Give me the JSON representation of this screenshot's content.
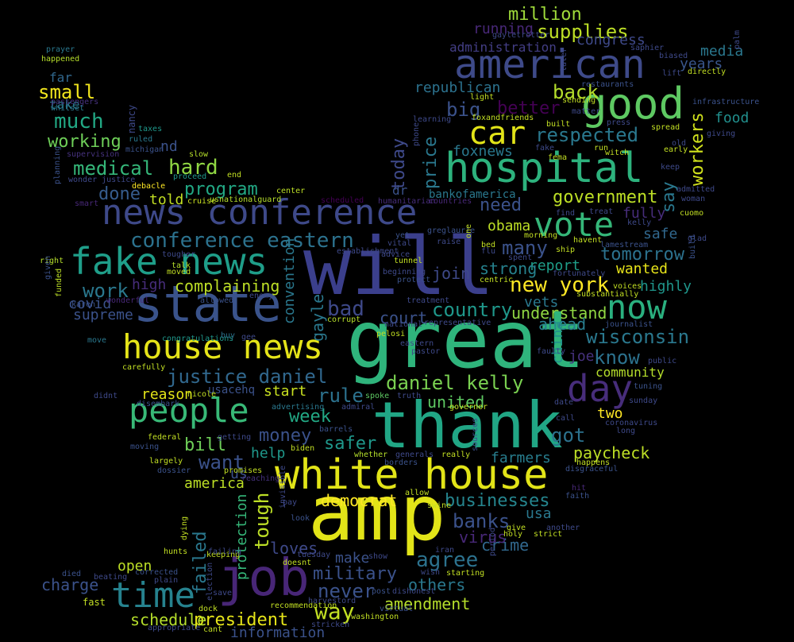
{
  "image": {
    "kind": "word-cloud",
    "background": "#000000"
  },
  "words": [
    {
      "text": "will",
      "color": "#3b3f8c"
    },
    {
      "text": "great",
      "color": "#2fb47c"
    },
    {
      "text": "amp",
      "color": "#e2e418"
    },
    {
      "text": "thank",
      "color": "#21a685"
    },
    {
      "text": "state",
      "color": "#3a538b"
    },
    {
      "text": "white house",
      "color": "#e2e418"
    },
    {
      "text": "job",
      "color": "#482677"
    },
    {
      "text": "hospital",
      "color": "#2db27d"
    },
    {
      "text": "american",
      "color": "#3e4a89"
    },
    {
      "text": "news conference",
      "color": "#3e4989"
    },
    {
      "text": "fake news",
      "color": "#1f9e89"
    },
    {
      "text": "house news",
      "color": "#e5e419"
    },
    {
      "text": "good",
      "color": "#5ec962"
    },
    {
      "text": "people",
      "color": "#38b977"
    },
    {
      "text": "vote",
      "color": "#35b779"
    },
    {
      "text": "now",
      "color": "#2ab07f"
    },
    {
      "text": "time",
      "color": "#26828e"
    },
    {
      "text": "car",
      "color": "#e2e418"
    },
    {
      "text": "day",
      "color": "#472d7b"
    },
    {
      "text": "conference eastern",
      "color": "#2c728e"
    },
    {
      "text": "justice daniel",
      "color": "#31688e"
    },
    {
      "text": "daniel kelly",
      "color": "#7ad151"
    },
    {
      "text": "new york",
      "color": "#fde725"
    },
    {
      "text": "country",
      "color": "#1f988b"
    },
    {
      "text": "wisconsin",
      "color": "#2a788e"
    },
    {
      "text": "businesses",
      "color": "#25858e"
    },
    {
      "text": "president",
      "color": "#e5e419"
    },
    {
      "text": "military",
      "color": "#3b528b"
    },
    {
      "text": "medical",
      "color": "#35b779"
    },
    {
      "text": "much",
      "color": "#22a884"
    },
    {
      "text": "working",
      "color": "#6ece58"
    },
    {
      "text": "work",
      "color": "#2a788e"
    },
    {
      "text": "hard",
      "color": "#90d743"
    },
    {
      "text": "program",
      "color": "#22a884"
    },
    {
      "text": "done",
      "color": "#365c8d"
    },
    {
      "text": "government",
      "color": "#bddf26"
    },
    {
      "text": "respected",
      "color": "#2a788e"
    },
    {
      "text": "big",
      "color": "#3b528b"
    },
    {
      "text": "better",
      "color": "#440154"
    },
    {
      "text": "back",
      "color": "#b5de2b"
    },
    {
      "text": "supplies",
      "color": "#bddf26"
    },
    {
      "text": "million",
      "color": "#9fda3a"
    },
    {
      "text": "running",
      "color": "#482878"
    },
    {
      "text": "congress",
      "color": "#3e4989"
    },
    {
      "text": "administration",
      "color": "#433e85"
    },
    {
      "text": "media",
      "color": "#2a788e"
    },
    {
      "text": "republican",
      "color": "#2c728e"
    },
    {
      "text": "small",
      "color": "#f1e51d"
    },
    {
      "text": "far",
      "color": "#31688e"
    },
    {
      "text": "take",
      "color": "#2a788e"
    },
    {
      "text": "workers",
      "color": "#d0e11c"
    },
    {
      "text": "food",
      "color": "#218f8d"
    },
    {
      "text": "years",
      "color": "#39568c"
    },
    {
      "text": "need",
      "color": "#3b528b"
    },
    {
      "text": "obama",
      "color": "#bddf26"
    },
    {
      "text": "many",
      "color": "#3b528b"
    },
    {
      "text": "tomorrow",
      "color": "#2c728e"
    },
    {
      "text": "safe",
      "color": "#31688e"
    },
    {
      "text": "fully",
      "color": "#472d7b"
    },
    {
      "text": "say",
      "color": "#2a788e"
    },
    {
      "text": "report",
      "color": "#1f9e89"
    },
    {
      "text": "strong",
      "color": "#26828e"
    },
    {
      "text": "wanted",
      "color": "#e7e419"
    },
    {
      "text": "highly",
      "color": "#1f968b"
    },
    {
      "text": "join",
      "color": "#3e4989"
    },
    {
      "text": "bad",
      "color": "#3e4989"
    },
    {
      "text": "complaining",
      "color": "#bddf26"
    },
    {
      "text": "high",
      "color": "#472d7b"
    },
    {
      "text": "covid",
      "color": "#3b528b"
    },
    {
      "text": "supreme",
      "color": "#3b528b"
    },
    {
      "text": "told",
      "color": "#c2df23"
    },
    {
      "text": "vets",
      "color": "#2a788e"
    },
    {
      "text": "understand",
      "color": "#90d743"
    },
    {
      "text": "ahead",
      "color": "#287d8e"
    },
    {
      "text": "know",
      "color": "#2c728e"
    },
    {
      "text": "joe",
      "color": "#46327e"
    },
    {
      "text": "community",
      "color": "#b5de2b"
    },
    {
      "text": "court",
      "color": "#3b528b"
    },
    {
      "text": "rule",
      "color": "#2c728e"
    },
    {
      "text": "united",
      "color": "#5ec962"
    },
    {
      "text": "week",
      "color": "#22a884"
    },
    {
      "text": "start",
      "color": "#c8e020"
    },
    {
      "text": "reason",
      "color": "#e2e418"
    },
    {
      "text": "money",
      "color": "#3b528b"
    },
    {
      "text": "bill",
      "color": "#6ece58"
    },
    {
      "text": "safer",
      "color": "#1f988b"
    },
    {
      "text": "help",
      "color": "#1f988b"
    },
    {
      "text": "want",
      "color": "#3b528b"
    },
    {
      "text": "got",
      "color": "#2c728e"
    },
    {
      "text": "two",
      "color": "#fde725"
    },
    {
      "text": "paycheck",
      "color": "#bddf26"
    },
    {
      "text": "farmers",
      "color": "#287d8e"
    },
    {
      "text": "banks",
      "color": "#3b528b"
    },
    {
      "text": "usa",
      "color": "#2a788e"
    },
    {
      "text": "crime",
      "color": "#31688e"
    },
    {
      "text": "virus",
      "color": "#482878"
    },
    {
      "text": "agree",
      "color": "#2c728e"
    },
    {
      "text": "make",
      "color": "#3b528b"
    },
    {
      "text": "never",
      "color": "#3b528b"
    },
    {
      "text": "others",
      "color": "#2a788e"
    },
    {
      "text": "amendment",
      "color": "#b5de2b"
    },
    {
      "text": "way",
      "color": "#c2df23"
    },
    {
      "text": "democrat",
      "color": "#fde725"
    },
    {
      "text": "loves",
      "color": "#3e4989"
    },
    {
      "text": "tough",
      "color": "#bddf26"
    },
    {
      "text": "protection",
      "color": "#35b779"
    },
    {
      "text": "failed",
      "color": "#2a788e"
    },
    {
      "text": "open",
      "color": "#bddf26"
    },
    {
      "text": "charge",
      "color": "#3b528b"
    },
    {
      "text": "schedule",
      "color": "#b5de2b"
    },
    {
      "text": "information",
      "color": "#3b528b"
    },
    {
      "text": "america",
      "color": "#bddf26"
    },
    {
      "text": "today",
      "color": "#3e4989"
    },
    {
      "text": "price",
      "color": "#2a788e"
    },
    {
      "text": "dr",
      "color": "#3b528b"
    },
    {
      "text": "foxnews",
      "color": "#2a788e"
    },
    {
      "text": "bankofamerica",
      "color": "#2a788e"
    },
    {
      "text": "gayle",
      "color": "#2a788e"
    },
    {
      "text": "convention",
      "color": "#2a788e"
    },
    {
      "text": "china",
      "color": "#21918c"
    },
    {
      "text": "us",
      "color": "#3b528b"
    },
    {
      "text": "nd",
      "color": "#3b528b"
    },
    {
      "text": "usacehq",
      "color": "#3b528b"
    },
    {
      "text": "nancy",
      "color": "#3e4989"
    },
    {
      "text": "prayer",
      "color": "#2a788e"
    },
    {
      "text": "happened",
      "color": "#b5de2b"
    },
    {
      "text": "passengers",
      "color": "#46327e"
    },
    {
      "text": "whitset",
      "color": "#2a788e"
    },
    {
      "text": "taxes",
      "color": "#1f988b"
    },
    {
      "text": "ruled",
      "color": "#2a788e"
    },
    {
      "text": "michigan",
      "color": "#3b528b"
    },
    {
      "text": "supervision",
      "color": "#46327e"
    },
    {
      "text": "planning",
      "color": "#3b528b"
    },
    {
      "text": "wonder justice",
      "color": "#3e4989"
    },
    {
      "text": "slow",
      "color": "#b5de2b"
    },
    {
      "text": "end",
      "color": "#c2df23"
    },
    {
      "text": "proceed",
      "color": "#1f988b"
    },
    {
      "text": "debacle",
      "color": "#fde725"
    },
    {
      "text": "smart",
      "color": "#482878"
    },
    {
      "text": "cruise",
      "color": "#c8e020"
    },
    {
      "text": "usnationalguard",
      "color": "#b5de2b"
    },
    {
      "text": "center",
      "color": "#bddf26"
    },
    {
      "text": "scheduled",
      "color": "#440154"
    },
    {
      "text": "humanitarian",
      "color": "#472d7b"
    },
    {
      "text": "countries",
      "color": "#482878"
    },
    {
      "text": "right",
      "color": "#b5de2b"
    },
    {
      "text": "given",
      "color": "#3b528b"
    },
    {
      "text": "funded",
      "color": "#bddf26"
    },
    {
      "text": "talk",
      "color": "#b5de2b"
    },
    {
      "text": "moved",
      "color": "#c2df23"
    },
    {
      "text": "tougher",
      "color": "#3e4989"
    },
    {
      "text": "wonderful",
      "color": "#482878"
    },
    {
      "text": "allowed",
      "color": "#3b528b"
    },
    {
      "text": "enemy",
      "color": "#3e4989"
    },
    {
      "text": "karen",
      "color": "#3b528b"
    },
    {
      "text": "move",
      "color": "#2a788e"
    },
    {
      "text": "congratulations",
      "color": "#1f988b"
    },
    {
      "text": "buy",
      "color": "#2c728e"
    },
    {
      "text": "gee",
      "color": "#3e4989"
    },
    {
      "text": "corrupt",
      "color": "#b5de2b"
    },
    {
      "text": "national",
      "color": "#3e4989"
    },
    {
      "text": "carefully",
      "color": "#c2df23"
    },
    {
      "text": "nicole",
      "color": "#c2df23"
    },
    {
      "text": "didnt",
      "color": "#3e4989"
    },
    {
      "text": "disembark",
      "color": "#3b528b"
    },
    {
      "text": "advertising",
      "color": "#2a788e"
    },
    {
      "text": "admiral",
      "color": "#3e4989"
    },
    {
      "text": "spoke",
      "color": "#5ec962"
    },
    {
      "text": "truth",
      "color": "#3e4989"
    },
    {
      "text": "governor",
      "color": "#c2df23"
    },
    {
      "text": "barrels",
      "color": "#3b528b"
    },
    {
      "text": "federal",
      "color": "#c2df23"
    },
    {
      "text": "getting",
      "color": "#3e4989"
    },
    {
      "text": "moving",
      "color": "#3b528b"
    },
    {
      "text": "biden",
      "color": "#c2df23"
    },
    {
      "text": "largely",
      "color": "#c2df23"
    },
    {
      "text": "dossier",
      "color": "#3b528b"
    },
    {
      "text": "promises",
      "color": "#c2df23"
    },
    {
      "text": "reaching",
      "color": "#46327e"
    },
    {
      "text": "whether",
      "color": "#b5de2b"
    },
    {
      "text": "generals",
      "color": "#3e4989"
    },
    {
      "text": "borders",
      "color": "#3b528b"
    },
    {
      "text": "really",
      "color": "#c2df23"
    },
    {
      "text": "sources",
      "color": "#3b528b"
    },
    {
      "text": "happens",
      "color": "#c2df23"
    },
    {
      "text": "disgraceful",
      "color": "#3b528b"
    },
    {
      "text": "hit",
      "color": "#482878"
    },
    {
      "text": "faith",
      "color": "#3b528b"
    },
    {
      "text": "another",
      "color": "#3e4989"
    },
    {
      "text": "strict",
      "color": "#c2df23"
    },
    {
      "text": "give",
      "color": "#c2df23"
    },
    {
      "text": "holy",
      "color": "#c2df23"
    },
    {
      "text": "iran",
      "color": "#3e4989"
    },
    {
      "text": "swine",
      "color": "#c2df23"
    },
    {
      "text": "allow",
      "color": "#c2df23"
    },
    {
      "text": "pay",
      "color": "#3e4989"
    },
    {
      "text": "invisible",
      "color": "#3e4989"
    },
    {
      "text": "look",
      "color": "#3b528b"
    },
    {
      "text": "doesnt",
      "color": "#c2df23"
    },
    {
      "text": "show",
      "color": "#3e4989"
    },
    {
      "text": "tuesday",
      "color": "#3e4989"
    },
    {
      "text": "wish",
      "color": "#3e4989"
    },
    {
      "text": "starting",
      "color": "#c2df23"
    },
    {
      "text": "period",
      "color": "#3e4989"
    },
    {
      "text": "post",
      "color": "#3b528b"
    },
    {
      "text": "dishonest",
      "color": "#3e4989"
    },
    {
      "text": "keeping",
      "color": "#c2df23"
    },
    {
      "text": "failing",
      "color": "#3e4989"
    },
    {
      "text": "hunts",
      "color": "#c2df23"
    },
    {
      "text": "dying",
      "color": "#c2df23"
    },
    {
      "text": "died",
      "color": "#3b528b"
    },
    {
      "text": "beating",
      "color": "#3e4989"
    },
    {
      "text": "corrected",
      "color": "#3b528b"
    },
    {
      "text": "plain",
      "color": "#3e4989"
    },
    {
      "text": "fast",
      "color": "#c2df23"
    },
    {
      "text": "save",
      "color": "#3e4989"
    },
    {
      "text": "dock",
      "color": "#c2df23"
    },
    {
      "text": "cant",
      "color": "#c2df23"
    },
    {
      "text": "appropriate",
      "color": "#3e4989"
    },
    {
      "text": "election",
      "color": "#3e4989"
    },
    {
      "text": "recommendation",
      "color": "#c2df23"
    },
    {
      "text": "harvestord",
      "color": "#3e4989"
    },
    {
      "text": "virtual",
      "color": "#3b528b"
    },
    {
      "text": "washington",
      "color": "#c2df23"
    },
    {
      "text": "stricken",
      "color": "#3e4989"
    },
    {
      "text": "pelosi",
      "color": "#c2df23"
    },
    {
      "text": "eastern",
      "color": "#3e4989"
    },
    {
      "text": "pastor",
      "color": "#3e4989"
    },
    {
      "text": "representative",
      "color": "#3e4989"
    },
    {
      "text": "treatment",
      "color": "#3e4989"
    },
    {
      "text": "protect",
      "color": "#3b528b"
    },
    {
      "text": "beginning",
      "color": "#3e4989"
    },
    {
      "text": "tunnel",
      "color": "#c2df23"
    },
    {
      "text": "advice",
      "color": "#3e4989"
    },
    {
      "text": "yet",
      "color": "#3b528b"
    },
    {
      "text": "vital",
      "color": "#3e4989"
    },
    {
      "text": "establishment",
      "color": "#3e4989"
    },
    {
      "text": "raise",
      "color": "#3e4989"
    },
    {
      "text": "greglaurie",
      "color": "#3b528b"
    },
    {
      "text": "bed",
      "color": "#c2df23"
    },
    {
      "text": "flu",
      "color": "#3e4989"
    },
    {
      "text": "spent",
      "color": "#3e4989"
    },
    {
      "text": "centric",
      "color": "#c2df23"
    },
    {
      "text": "ship",
      "color": "#c2df23"
    },
    {
      "text": "fortunately",
      "color": "#3e4989"
    },
    {
      "text": "havent",
      "color": "#c2df23"
    },
    {
      "text": "morning",
      "color": "#c2df23"
    },
    {
      "text": "substantially",
      "color": "#c2df23"
    },
    {
      "text": "voices",
      "color": "#c2df23"
    },
    {
      "text": "journalist",
      "color": "#3b528b"
    },
    {
      "text": "faulty",
      "color": "#3e4989"
    },
    {
      "text": "public",
      "color": "#3e4989"
    },
    {
      "text": "tuning",
      "color": "#3b528b"
    },
    {
      "text": "sunday",
      "color": "#3e4989"
    },
    {
      "text": "date",
      "color": "#3e4989"
    },
    {
      "text": "call",
      "color": "#3e4989"
    },
    {
      "text": "long",
      "color": "#3e4989"
    },
    {
      "text": "coronavirus",
      "color": "#3e4989"
    },
    {
      "text": "lamestream",
      "color": "#3b528b"
    },
    {
      "text": "treat",
      "color": "#3e4989"
    },
    {
      "text": "kelly",
      "color": "#3e4989"
    },
    {
      "text": "find",
      "color": "#3e4989"
    },
    {
      "text": "cuomo",
      "color": "#c2df23"
    },
    {
      "text": "glad",
      "color": "#3e4989"
    },
    {
      "text": "build",
      "color": "#3b528b"
    },
    {
      "text": "woman",
      "color": "#3e4989"
    },
    {
      "text": "admitted",
      "color": "#3e4989"
    },
    {
      "text": "keep",
      "color": "#3e4989"
    },
    {
      "text": "early",
      "color": "#c2df23"
    },
    {
      "text": "old",
      "color": "#3e4989"
    },
    {
      "text": "spread",
      "color": "#c2df23"
    },
    {
      "text": "giving",
      "color": "#3e4989"
    },
    {
      "text": "infrastructure",
      "color": "#3b528b"
    },
    {
      "text": "lift",
      "color": "#3e4989"
    },
    {
      "text": "directly",
      "color": "#c2df23"
    },
    {
      "text": "biased",
      "color": "#3e4989"
    },
    {
      "text": "palm",
      "color": "#3e4989"
    },
    {
      "text": "saphier",
      "color": "#3e4989"
    },
    {
      "text": "gayletrotter",
      "color": "#3e4989"
    },
    {
      "text": "later",
      "color": "#3e4989"
    },
    {
      "text": "restaurants",
      "color": "#3b528b"
    },
    {
      "text": "light",
      "color": "#c2df23"
    },
    {
      "text": "sending",
      "color": "#c2df23"
    },
    {
      "text": "matter",
      "color": "#3e4989"
    },
    {
      "text": "foxandfriends",
      "color": "#c2df23"
    },
    {
      "text": "press",
      "color": "#3e4989"
    },
    {
      "text": "learning",
      "color": "#3e4989"
    },
    {
      "text": "built",
      "color": "#c2df23"
    },
    {
      "text": "run",
      "color": "#c2df23"
    },
    {
      "text": "witch",
      "color": "#c2df23"
    },
    {
      "text": "fake",
      "color": "#3e4989"
    },
    {
      "text": "fema",
      "color": "#c2df23"
    },
    {
      "text": "phone",
      "color": "#3e4989"
    },
    {
      "text": "one",
      "color": "#c2df23"
    }
  ]
}
